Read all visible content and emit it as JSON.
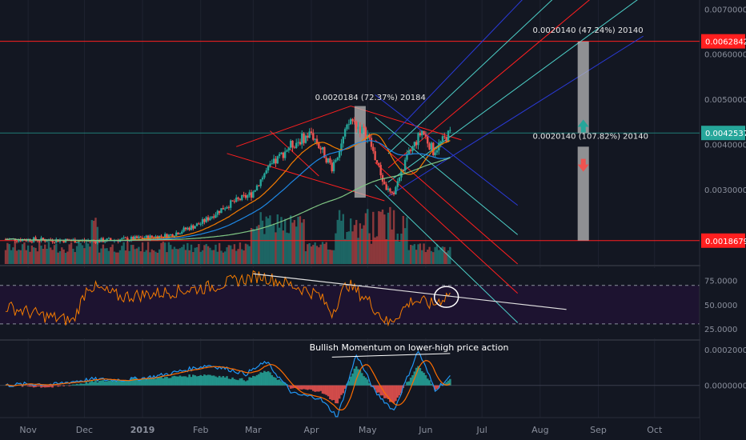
{
  "colors": {
    "background": "#131722",
    "grid": "#1e2230",
    "up": "#26a69a",
    "down": "#ef5350",
    "axis_text": "#8a8f9c",
    "red_line": "#ff1f1f",
    "teal_line": "#4dd0c8",
    "blue_line": "#2a3ad8",
    "gray_box": "#b9b9b9"
  },
  "chart_data": [
    {
      "type": "candlestick",
      "panel": "price",
      "x_ticks": [
        "Nov",
        "Dec",
        "2019",
        "Feb",
        "Mar",
        "Apr",
        "May",
        "Jun",
        "Jul",
        "Aug",
        "Sep",
        "Oct"
      ],
      "y_ticks": [
        "0.0070000",
        "0.0060000",
        "0.0050000",
        "0.0040000",
        "0.0030000"
      ],
      "ylim": [
        0.00135,
        0.0072
      ],
      "price_tags": [
        {
          "label": "0.0062842",
          "value": 0.0062842,
          "color": "#ff1f1f"
        },
        {
          "label": "0.0042537",
          "value": 0.0042537,
          "color": "#26a69a"
        },
        {
          "label": "0.0018679",
          "value": 0.0018679,
          "color": "#ff1f1f"
        }
      ],
      "annotations": [
        "0.0020184 (72.37%) 20184",
        "0.0020140 (47.24%) 20140",
        "0.0020140 (107.82%) 20140"
      ],
      "close_anchors": [
        [
          "2018-10-20",
          0.0019
        ],
        [
          "2018-11-15",
          0.00188
        ],
        [
          "2018-12-05",
          0.00186
        ],
        [
          "2018-12-25",
          0.0019
        ],
        [
          "2019-01-15",
          0.00198
        ],
        [
          "2019-02-01",
          0.00225
        ],
        [
          "2019-02-15",
          0.00265
        ],
        [
          "2019-02-28",
          0.0029
        ],
        [
          "2019-03-07",
          0.00335
        ],
        [
          "2019-03-20",
          0.00395
        ],
        [
          "2019-04-01",
          0.00425
        ],
        [
          "2019-04-12",
          0.0035
        ],
        [
          "2019-04-22",
          0.00455
        ],
        [
          "2019-05-01",
          0.0042
        ],
        [
          "2019-05-10",
          0.0031
        ],
        [
          "2019-05-14",
          0.00285
        ],
        [
          "2019-05-22",
          0.0037
        ],
        [
          "2019-05-30",
          0.0043
        ],
        [
          "2019-06-05",
          0.00385
        ],
        [
          "2019-06-14",
          0.00425
        ]
      ]
    },
    {
      "type": "line",
      "panel": "rsi",
      "y_ticks": [
        "75.0000",
        "50.0000",
        "25.0000"
      ],
      "band": [
        30,
        70
      ],
      "ylim": [
        15,
        88
      ],
      "anchors": [
        [
          "2018-10-20",
          48
        ],
        [
          "2018-11-10",
          38
        ],
        [
          "2018-11-25",
          33
        ],
        [
          "2018-12-03",
          70
        ],
        [
          "2018-12-20",
          58
        ],
        [
          "2019-01-10",
          62
        ],
        [
          "2019-02-05",
          68
        ],
        [
          "2019-02-20",
          75
        ],
        [
          "2019-03-05",
          80
        ],
        [
          "2019-03-25",
          68
        ],
        [
          "2019-04-05",
          60
        ],
        [
          "2019-04-12",
          42
        ],
        [
          "2019-04-20",
          72
        ],
        [
          "2019-05-01",
          55
        ],
        [
          "2019-05-12",
          30
        ],
        [
          "2019-05-25",
          55
        ],
        [
          "2019-06-05",
          50
        ],
        [
          "2019-06-14",
          62
        ]
      ]
    },
    {
      "type": "histogram",
      "panel": "macd",
      "y_ticks": [
        "0.0002000",
        "0.0000000"
      ],
      "ylim": [
        -0.00018,
        0.00024
      ],
      "label": "Bullish Momentum on lower-high price action",
      "anchors": [
        [
          "2018-10-20",
          0.0
        ],
        [
          "2018-11-15",
          -1e-05
        ],
        [
          "2018-12-05",
          2e-05
        ],
        [
          "2019-01-05",
          4e-05
        ],
        [
          "2019-02-05",
          6e-05
        ],
        [
          "2019-02-25",
          3e-05
        ],
        [
          "2019-03-08",
          8e-05
        ],
        [
          "2019-03-22",
          -2e-05
        ],
        [
          "2019-04-05",
          -3e-05
        ],
        [
          "2019-04-15",
          -0.0001
        ],
        [
          "2019-04-25",
          0.00011
        ],
        [
          "2019-05-05",
          -3e-05
        ],
        [
          "2019-05-15",
          -0.0001
        ],
        [
          "2019-05-28",
          0.00011
        ],
        [
          "2019-06-06",
          -2e-05
        ],
        [
          "2019-06-14",
          3e-05
        ]
      ]
    }
  ]
}
